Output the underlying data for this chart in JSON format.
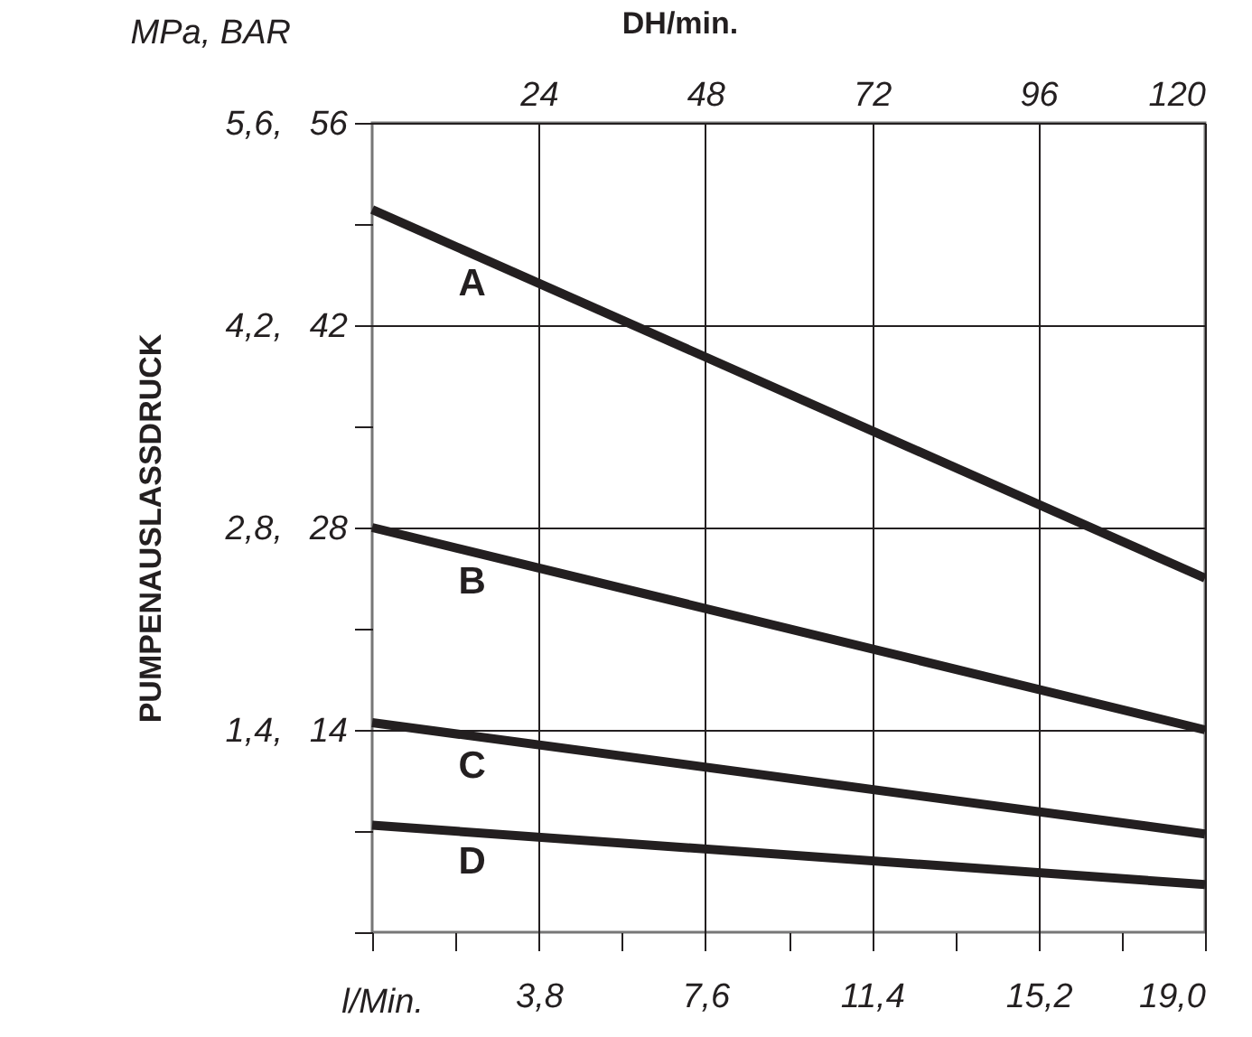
{
  "chart_data": {
    "type": "line",
    "xlabel": "l/Min.",
    "ylabel": "PUMPENAUSLASSDRUCK",
    "x2label": "DH/min.",
    "annotations": [
      "MPa, BAR"
    ],
    "x": [
      0,
      19.0
    ],
    "series": [
      {
        "name": "A",
        "color": "#231f20",
        "values": [
          5.0,
          2.45
        ]
      },
      {
        "name": "B",
        "color": "#231f20",
        "values": [
          2.8,
          1.4
        ]
      },
      {
        "name": "C",
        "color": "#231f20",
        "values": [
          1.45,
          0.68
        ]
      },
      {
        "name": "D",
        "color": "#231f20",
        "values": [
          0.74,
          0.33
        ]
      }
    ],
    "xlim": [
      0,
      19.0
    ],
    "xticks": [
      {
        "value": 0,
        "label": null
      },
      {
        "value": 1.9,
        "label": null
      },
      {
        "value": 3.8,
        "label": "3,8"
      },
      {
        "value": 5.7,
        "label": null
      },
      {
        "value": 7.6,
        "label": "7,6"
      },
      {
        "value": 9.5,
        "label": null
      },
      {
        "value": 11.4,
        "label": "11,4"
      },
      {
        "value": 13.3,
        "label": null
      },
      {
        "value": 15.2,
        "label": "15,2"
      },
      {
        "value": 17.1,
        "label": null
      },
      {
        "value": 19.0,
        "label": "19,0"
      }
    ],
    "ylim": [
      0,
      5.6
    ],
    "yticks": [
      {
        "value": 0,
        "label": null
      },
      {
        "value": 0.7,
        "label": null
      },
      {
        "value": 1.4,
        "label": "1,4,"
      },
      {
        "value": 2.1,
        "label": null
      },
      {
        "value": 2.8,
        "label": "2,8,"
      },
      {
        "value": 3.5,
        "label": null
      },
      {
        "value": 4.2,
        "label": "4,2,"
      },
      {
        "value": 4.9,
        "label": null
      },
      {
        "value": 5.6,
        "label": "5,6,"
      }
    ],
    "y2lim": [
      0,
      56
    ],
    "y2ticks": [
      14,
      28,
      42,
      56
    ],
    "x2lim": [
      0,
      120
    ],
    "x2ticks": [
      24,
      48,
      72,
      96,
      120
    ],
    "grid": true,
    "legend": false,
    "marker": "none",
    "line_style": "solid"
  }
}
